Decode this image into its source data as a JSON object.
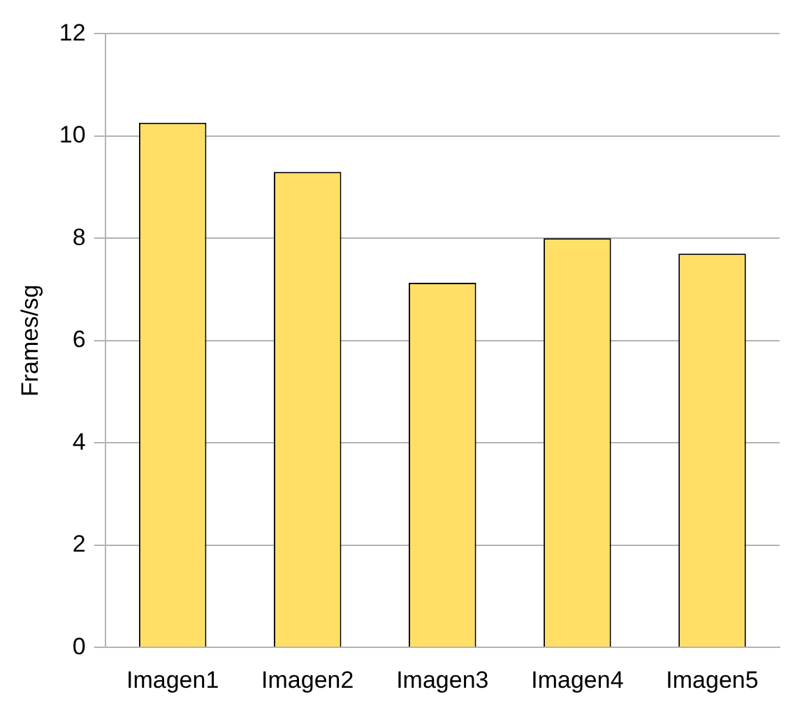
{
  "chart_data": {
    "type": "bar",
    "ylabel": "Frames/sg",
    "categories": [
      "Imagen1",
      "Imagen2",
      "Imagen3",
      "Imagen4",
      "Imagen5"
    ],
    "values": [
      10.26,
      9.3,
      7.13,
      8.0,
      7.7
    ],
    "color": "#ffdf66",
    "ylim": [
      0,
      12
    ],
    "yticks": [
      0,
      2,
      4,
      6,
      8,
      10,
      12
    ],
    "grid": "y"
  }
}
